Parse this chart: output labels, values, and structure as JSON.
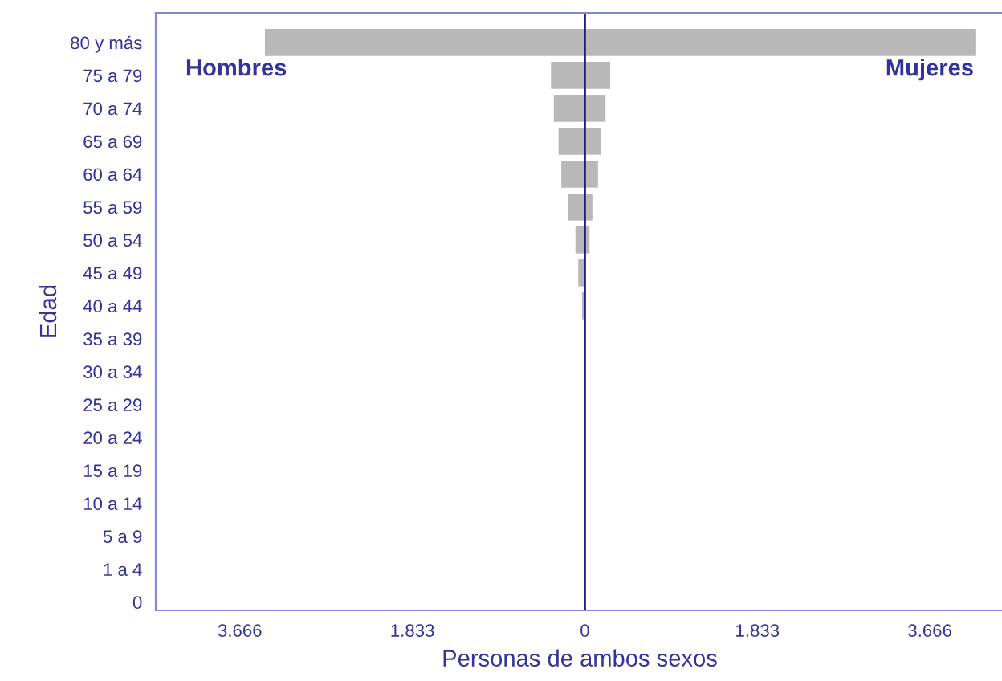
{
  "chart_data": {
    "type": "bar",
    "orientation": "horizontal",
    "xlabel": "Personas de ambos sexos",
    "ylabel": "Edad",
    "categories": [
      "80 y más",
      "75 a 79",
      "70 a 74",
      "65 a 69",
      "60 a 64",
      "55 a 59",
      "50 a 54",
      "45 a 49",
      "40 a 44",
      "35 a 39",
      "30 a 34",
      "25 a 29",
      "20 a 24",
      "15 a 19",
      "10 a 14",
      "5 a 9",
      "1 a 4",
      "0"
    ],
    "series": [
      {
        "name": "Hombres",
        "color": "#b8b8b8",
        "values": [
          -3400,
          -360,
          -330,
          -280,
          -250,
          -180,
          -100,
          -70,
          -30,
          null,
          null,
          0,
          0,
          0,
          0,
          0,
          0,
          0
        ]
      },
      {
        "name": "Mujeres",
        "color": "#b8b8b8",
        "values": [
          4150,
          270,
          220,
          170,
          140,
          80,
          50,
          null,
          0,
          0,
          0,
          0,
          0,
          0,
          0,
          0,
          0,
          0
        ]
      }
    ],
    "xlim": [
      -4560,
      4450
    ],
    "xticks": [
      {
        "value": -3666,
        "label": "3.666"
      },
      {
        "value": -1833,
        "label": "1.833"
      },
      0,
      {
        "value": 1833,
        "label": "1.833"
      },
      {
        "value": 3666,
        "label": "3.666"
      }
    ],
    "ref_lines": [
      {
        "axis": "x",
        "value": 0,
        "label": null,
        "color": "#1f1f7a"
      }
    ],
    "grid": false,
    "legend": false
  }
}
